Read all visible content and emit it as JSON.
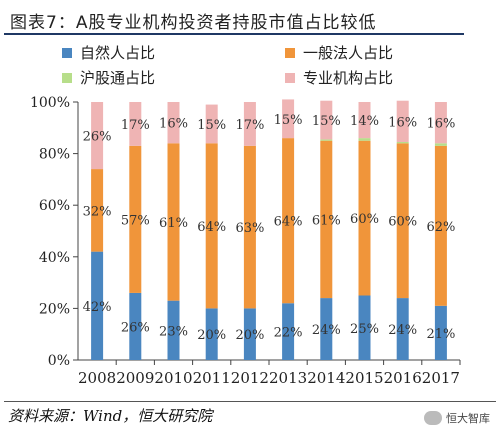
{
  "header": {
    "title": "图表7：A股专业机构投资者持股市值占比较低"
  },
  "footer": {
    "source": "资料来源：Wind，恒大研究院",
    "watermark": "恒大智库"
  },
  "colors": {
    "natural": "#4a86c0",
    "general": "#f0953a",
    "hk": "#b7de8a",
    "inst": "#efb4b4"
  },
  "chart_data": {
    "type": "bar",
    "stacked": true,
    "categories": [
      "2008",
      "2009",
      "2010",
      "2011",
      "2012",
      "2013",
      "2014",
      "2015",
      "2016",
      "2017"
    ],
    "series": [
      {
        "name": "自然人占比",
        "values": [
          42,
          26,
          23,
          20,
          20,
          22,
          24,
          25,
          24,
          21
        ],
        "labels": [
          "42%",
          "26%",
          "23%",
          "20%",
          "20%",
          "22%",
          "24%",
          "25%",
          "24%",
          "21%"
        ]
      },
      {
        "name": "一般法人占比",
        "values": [
          32,
          57,
          61,
          64,
          63,
          64,
          61,
          60,
          60,
          62
        ],
        "labels": [
          "32%",
          "57%",
          "61%",
          "64%",
          "63%",
          "64%",
          "61%",
          "60%",
          "60%",
          "62%"
        ]
      },
      {
        "name": "沪股通占比",
        "values": [
          0,
          0,
          0,
          0,
          0,
          0,
          0.5,
          1,
          0.5,
          1
        ]
      },
      {
        "name": "专业机构占比",
        "values": [
          26,
          17,
          16,
          15,
          17,
          15,
          15,
          14,
          16,
          16
        ],
        "labels": [
          "26%",
          "17%",
          "16%",
          "15%",
          "17%",
          "15%",
          "15%",
          "14%",
          "16%",
          "16%"
        ]
      }
    ],
    "ylim": [
      0,
      100
    ],
    "yticks": [
      "0%",
      "20%",
      "40%",
      "60%",
      "80%",
      "100%"
    ],
    "legend": "top"
  }
}
